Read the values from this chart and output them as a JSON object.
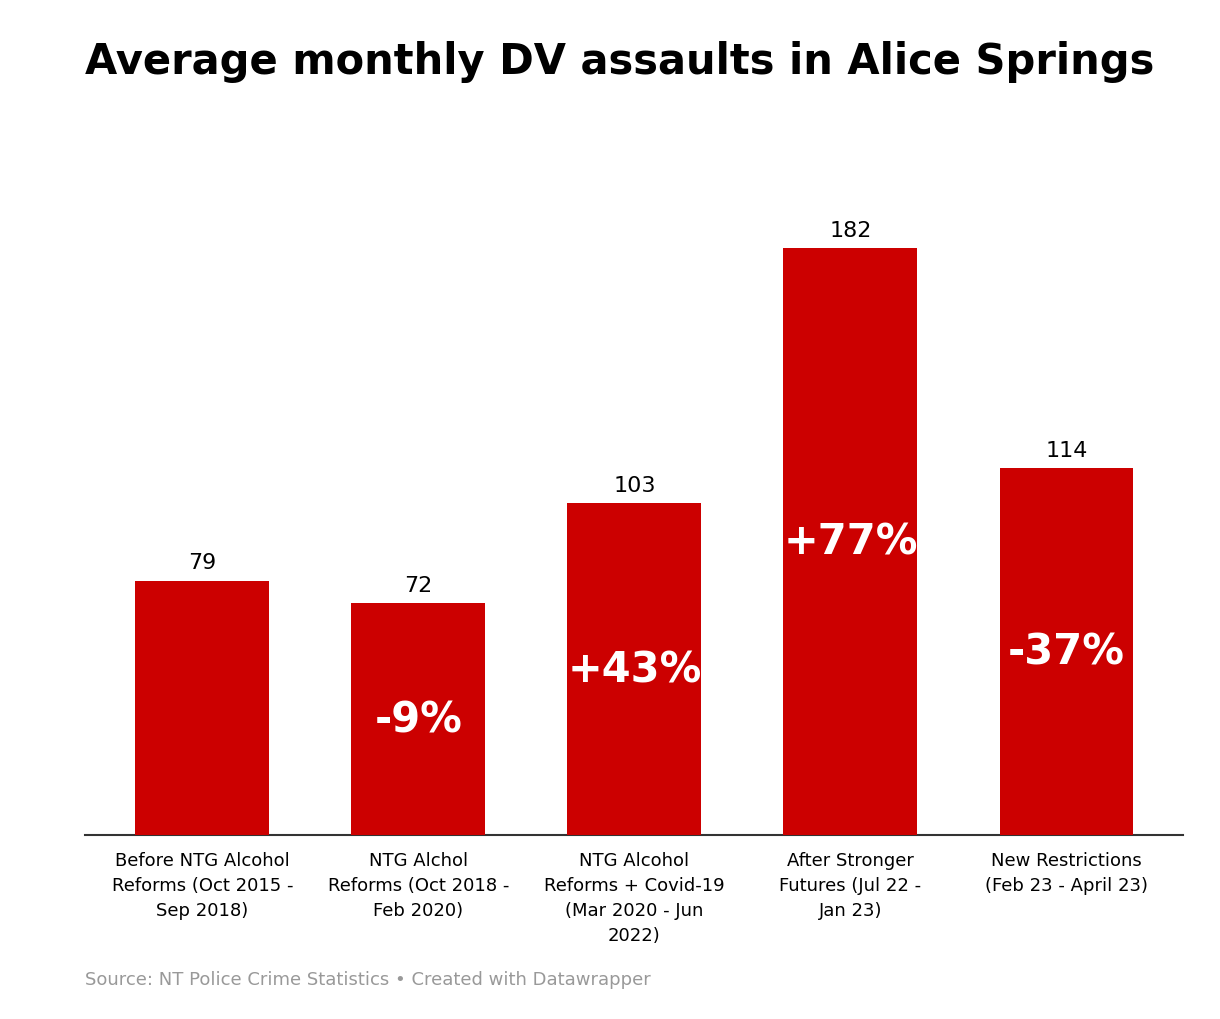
{
  "title": "Average monthly DV assaults in Alice Springs",
  "categories": [
    "Before NTG Alcohol\nReforms (Oct 2015 -\nSep 2018)",
    "NTG Alchol\nReforms (Oct 2018 -\nFeb 2020)",
    "NTG Alcohol\nReforms + Covid-19\n(Mar 2020 - Jun\n2022)",
    "After Stronger\nFutures (Jul 22 -\nJan 23)",
    "New Restrictions\n(Feb 23 - April 23)"
  ],
  "values": [
    79,
    72,
    103,
    182,
    114
  ],
  "bar_color": "#cc0000",
  "labels": [
    "79",
    "72",
    "103",
    "182",
    "114"
  ],
  "pct_labels": [
    null,
    "-9%",
    "+43%",
    "+77%",
    "-37%"
  ],
  "source_text": "Source: NT Police Crime Statistics • Created with Datawrapper",
  "title_fontsize": 30,
  "label_fontsize": 16,
  "pct_fontsize": 30,
  "source_fontsize": 13,
  "xlabel_fontsize": 13,
  "background_color": "#ffffff",
  "ylim": [
    0,
    215
  ]
}
